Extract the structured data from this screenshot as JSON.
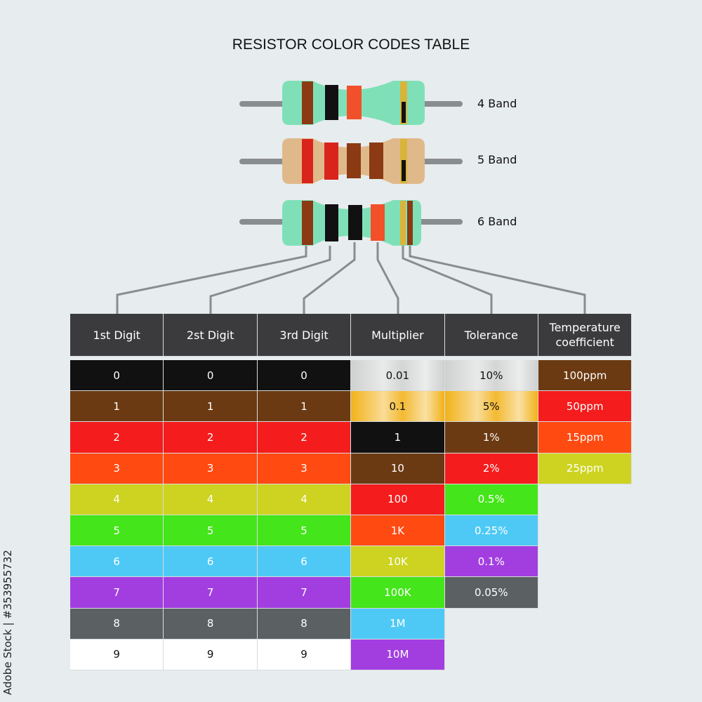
{
  "title": "RESISTOR COLOR CODES TABLE",
  "resistors": [
    {
      "label": "4 Band"
    },
    {
      "label": "5 Band"
    },
    {
      "label": "6 Band"
    }
  ],
  "table": {
    "headers": [
      "1st Digit",
      "2st Digit",
      "3rd Digit",
      "Multiplier",
      "Tolerance",
      "Temperature coefficient"
    ],
    "columns": [
      [
        {
          "text": "0",
          "color": "#111111",
          "ink": "#ffffff"
        },
        {
          "text": "1",
          "color": "#6b3a12",
          "ink": "#ffffff"
        },
        {
          "text": "2",
          "color": "#f41c1c",
          "ink": "#ffffff"
        },
        {
          "text": "3",
          "color": "#ff4a12",
          "ink": "#ffffff"
        },
        {
          "text": "4",
          "color": "#cdd320",
          "ink": "#ffffff"
        },
        {
          "text": "5",
          "color": "#44e51a",
          "ink": "#ffffff"
        },
        {
          "text": "6",
          "color": "#4ec9f5",
          "ink": "#ffffff"
        },
        {
          "text": "7",
          "color": "#a23ee0",
          "ink": "#ffffff"
        },
        {
          "text": "8",
          "color": "#5b6163",
          "ink": "#ffffff"
        },
        {
          "text": "9",
          "color": "#ffffff",
          "ink": "#111111"
        }
      ],
      [
        {
          "text": "0",
          "color": "#111111",
          "ink": "#ffffff"
        },
        {
          "text": "1",
          "color": "#6b3a12",
          "ink": "#ffffff"
        },
        {
          "text": "2",
          "color": "#f41c1c",
          "ink": "#ffffff"
        },
        {
          "text": "3",
          "color": "#ff4a12",
          "ink": "#ffffff"
        },
        {
          "text": "4",
          "color": "#cdd320",
          "ink": "#ffffff"
        },
        {
          "text": "5",
          "color": "#44e51a",
          "ink": "#ffffff"
        },
        {
          "text": "6",
          "color": "#4ec9f5",
          "ink": "#ffffff"
        },
        {
          "text": "7",
          "color": "#a23ee0",
          "ink": "#ffffff"
        },
        {
          "text": "8",
          "color": "#5b6163",
          "ink": "#ffffff"
        },
        {
          "text": "9",
          "color": "#ffffff",
          "ink": "#111111"
        }
      ],
      [
        {
          "text": "0",
          "color": "#111111",
          "ink": "#ffffff"
        },
        {
          "text": "1",
          "color": "#6b3a12",
          "ink": "#ffffff"
        },
        {
          "text": "2",
          "color": "#f41c1c",
          "ink": "#ffffff"
        },
        {
          "text": "3",
          "color": "#ff4a12",
          "ink": "#ffffff"
        },
        {
          "text": "4",
          "color": "#cdd320",
          "ink": "#ffffff"
        },
        {
          "text": "5",
          "color": "#44e51a",
          "ink": "#ffffff"
        },
        {
          "text": "6",
          "color": "#4ec9f5",
          "ink": "#ffffff"
        },
        {
          "text": "7",
          "color": "#a23ee0",
          "ink": "#ffffff"
        },
        {
          "text": "8",
          "color": "#5b6163",
          "ink": "#ffffff"
        },
        {
          "text": "9",
          "color": "#ffffff",
          "ink": "#111111"
        }
      ],
      [
        {
          "text": "0.01",
          "color": "#cfd0d0",
          "ink": "#111111"
        },
        {
          "text": "0.1",
          "color": "#f2b21a",
          "ink": "#111111"
        },
        {
          "text": "1",
          "color": "#111111",
          "ink": "#ffffff"
        },
        {
          "text": "10",
          "color": "#6b3a12",
          "ink": "#ffffff"
        },
        {
          "text": "100",
          "color": "#f41c1c",
          "ink": "#ffffff"
        },
        {
          "text": "1K",
          "color": "#ff4a12",
          "ink": "#ffffff"
        },
        {
          "text": "10K",
          "color": "#cdd320",
          "ink": "#ffffff"
        },
        {
          "text": "100K",
          "color": "#44e51a",
          "ink": "#ffffff"
        },
        {
          "text": "1M",
          "color": "#4ec9f5",
          "ink": "#ffffff"
        },
        {
          "text": "10M",
          "color": "#a23ee0",
          "ink": "#ffffff"
        }
      ],
      [
        {
          "text": "10%",
          "color": "#cfd0d0",
          "ink": "#111111"
        },
        {
          "text": "5%",
          "color": "#f2b21a",
          "ink": "#111111"
        },
        {
          "text": "1%",
          "color": "#6b3a12",
          "ink": "#ffffff"
        },
        {
          "text": "2%",
          "color": "#f41c1c",
          "ink": "#ffffff"
        },
        {
          "text": "0.5%",
          "color": "#44e51a",
          "ink": "#ffffff"
        },
        {
          "text": "0.25%",
          "color": "#4ec9f5",
          "ink": "#ffffff"
        },
        {
          "text": "0.1%",
          "color": "#a23ee0",
          "ink": "#ffffff"
        },
        {
          "text": "0.05%",
          "color": "#5b6163",
          "ink": "#ffffff"
        }
      ],
      [
        {
          "text": "100ppm",
          "color": "#6b3a12",
          "ink": "#ffffff"
        },
        {
          "text": "50ppm",
          "color": "#f41c1c",
          "ink": "#ffffff"
        },
        {
          "text": "15ppm",
          "color": "#ff4a12",
          "ink": "#ffffff"
        },
        {
          "text": "25ppm",
          "color": "#cdd320",
          "ink": "#ffffff"
        }
      ]
    ]
  },
  "watermark": "Adobe Stock | #353955732"
}
